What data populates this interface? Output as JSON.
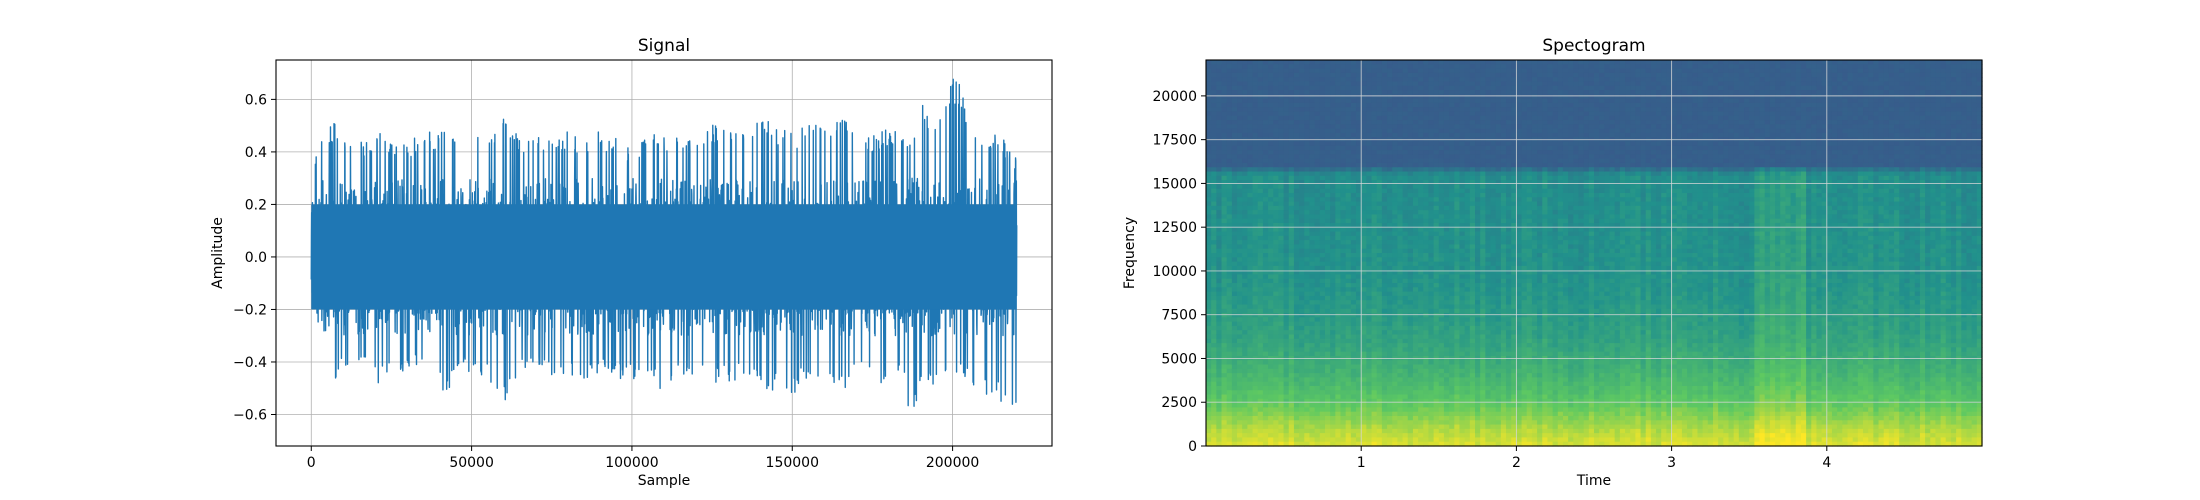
{
  "chart_data": [
    {
      "type": "line",
      "title": "Signal",
      "xlabel": "Sample",
      "ylabel": "Amplitude",
      "xlim": [
        -11000,
        231000
      ],
      "ylim": [
        -0.72,
        0.75
      ],
      "xticks": [
        0,
        50000,
        100000,
        150000,
        200000
      ],
      "xtick_labels": [
        "0",
        "50000",
        "100000",
        "150000",
        "200000"
      ],
      "yticks": [
        -0.6,
        -0.4,
        -0.2,
        0.0,
        0.2,
        0.4,
        0.6
      ],
      "ytick_labels": [
        "−0.6",
        "−0.4",
        "−0.2",
        "0.0",
        "0.2",
        "0.4",
        "0.6"
      ],
      "grid": true,
      "color": "#1f77b4",
      "series": [
        {
          "x": [
            0,
            1000,
            2500,
            5000,
            7500,
            10000,
            12500,
            15000,
            20000,
            25000,
            30000,
            35000,
            40000,
            42000,
            45000,
            50000,
            55000,
            60000,
            65000,
            70000,
            75000,
            80000,
            85000,
            90000,
            95000,
            100000,
            105000,
            110000,
            115000,
            120000,
            125000,
            130000,
            135000,
            140000,
            145000,
            150000,
            155000,
            160000,
            165000,
            170000,
            175000,
            180000,
            185000,
            187000,
            190000,
            195000,
            198000,
            200000,
            203000,
            205000,
            210000,
            215000,
            220000
          ],
          "y_max": [
            0.17,
            0.38,
            0.46,
            0.48,
            0.52,
            0.46,
            0.47,
            0.44,
            0.48,
            0.46,
            0.44,
            0.48,
            0.47,
            0.57,
            0.46,
            0.48,
            0.44,
            0.56,
            0.45,
            0.47,
            0.46,
            0.48,
            0.45,
            0.48,
            0.46,
            0.42,
            0.47,
            0.46,
            0.48,
            0.46,
            0.51,
            0.48,
            0.47,
            0.58,
            0.5,
            0.47,
            0.52,
            0.49,
            0.55,
            0.5,
            0.46,
            0.49,
            0.47,
            0.45,
            0.6,
            0.5,
            0.58,
            0.69,
            0.65,
            0.45,
            0.48,
            0.47,
            0.37
          ],
          "y_min": [
            -0.35,
            -0.61,
            -0.58,
            -0.5,
            -0.52,
            -0.42,
            -0.44,
            -0.42,
            -0.49,
            -0.46,
            -0.44,
            -0.4,
            -0.48,
            -0.55,
            -0.43,
            -0.44,
            -0.47,
            -0.58,
            -0.45,
            -0.44,
            -0.46,
            -0.44,
            -0.48,
            -0.44,
            -0.46,
            -0.47,
            -0.45,
            -0.52,
            -0.45,
            -0.46,
            -0.5,
            -0.48,
            -0.46,
            -0.51,
            -0.52,
            -0.53,
            -0.46,
            -0.47,
            -0.53,
            -0.44,
            -0.5,
            -0.48,
            -0.46,
            -0.66,
            -0.5,
            -0.52,
            -0.46,
            -0.5,
            -0.46,
            -0.49,
            -0.52,
            -0.55,
            -0.62
          ]
        }
      ]
    },
    {
      "type": "heatmap",
      "title": "Spectogram",
      "xlabel": "Time",
      "ylabel": "Frequency",
      "xlim": [
        0,
        5
      ],
      "ylim": [
        0,
        22050
      ],
      "xticks": [
        1,
        2,
        3,
        4
      ],
      "xtick_labels": [
        "1",
        "2",
        "3",
        "4"
      ],
      "yticks": [
        0,
        2500,
        5000,
        7500,
        10000,
        12500,
        15000,
        17500,
        20000
      ],
      "ytick_labels": [
        "0",
        "2500",
        "5000",
        "7500",
        "10000",
        "12500",
        "15000",
        "17500",
        "20000"
      ],
      "grid": true,
      "colormap": "viridis",
      "cutoff_frequency": 16000,
      "bright_time_band": [
        3.55,
        3.85
      ],
      "intensity_by_frequency": [
        {
          "frequency": 0,
          "level": 0.95
        },
        {
          "frequency": 1000,
          "level": 0.88
        },
        {
          "frequency": 2500,
          "level": 0.74
        },
        {
          "frequency": 4000,
          "level": 0.66
        },
        {
          "frequency": 6000,
          "level": 0.58
        },
        {
          "frequency": 9000,
          "level": 0.52
        },
        {
          "frequency": 12500,
          "level": 0.5
        },
        {
          "frequency": 15500,
          "level": 0.49
        },
        {
          "frequency": 16000,
          "level": 0.3
        },
        {
          "frequency": 22050,
          "level": 0.3
        }
      ]
    }
  ]
}
